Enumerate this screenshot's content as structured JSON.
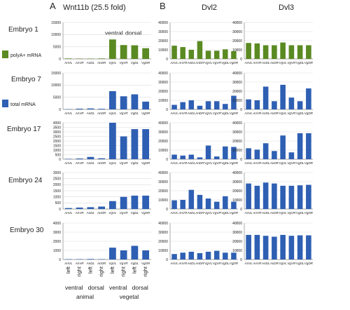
{
  "panels": {
    "a_letter": "A",
    "b_letter": "B",
    "col1_title": "Wnt11b  (25.5 fold)",
    "col2_title": "Dvl2",
    "col3_title": "Dvl3"
  },
  "embryos": [
    "Embryo  1",
    "Embryo 7",
    "Embryo 17",
    "Embryo 24",
    "Embryo 30"
  ],
  "legend": {
    "polya": {
      "label": "polyA+ mRNA",
      "color": "#5a8a22"
    },
    "total": {
      "label": "total mRNA",
      "color": "#2e5fb3"
    }
  },
  "top_annotation": {
    "ventral": "ventral",
    "dorsal": "dorsal"
  },
  "category_labels": [
    "AnVL",
    "AnVR",
    "AnDL",
    "AnDR",
    "VgVL",
    "VgVR",
    "VgDL",
    "VgDR"
  ],
  "bottom_axis": {
    "sides": [
      "left",
      "right",
      "left",
      "right",
      "left",
      "right",
      "left",
      "right"
    ],
    "groups": [
      "ventral",
      "dorsal",
      "ventral",
      "dorsal"
    ],
    "hemispheres": [
      "animal",
      "vegetal"
    ]
  },
  "chart_data": [
    {
      "type": "bar",
      "row": 0,
      "col": 0,
      "series_color": "polya",
      "ylim": [
        0,
        15000
      ],
      "yticks": [
        "0",
        "5000",
        "10000",
        "15000"
      ],
      "categories": [
        "AnVL",
        "AnVR",
        "AnDL",
        "AnDR",
        "VgVL",
        "VgVR",
        "VgDL",
        "VgDR"
      ],
      "values": [
        200,
        150,
        150,
        200,
        8000,
        5700,
        5600,
        4400
      ]
    },
    {
      "type": "bar",
      "row": 1,
      "col": 0,
      "series_color": "total",
      "ylim": [
        0,
        15000
      ],
      "yticks": [
        "0",
        "5000",
        "10000",
        "15000"
      ],
      "categories": [
        "AnVL",
        "AnVR",
        "AnDL",
        "AnDR",
        "VgVL",
        "VgVR",
        "VgDL",
        "VgDR"
      ],
      "values": [
        100,
        300,
        400,
        250,
        7500,
        5400,
        6200,
        3200
      ]
    },
    {
      "type": "bar",
      "row": 2,
      "col": 0,
      "series_color": "total",
      "ylim": [
        0,
        4000
      ],
      "yticks": [
        "0",
        "500",
        "1000",
        "1500",
        "2000",
        "2500",
        "3000",
        "3500",
        "4000"
      ],
      "categories": [
        "AnVL",
        "AnVR",
        "AnDL",
        "AnDR",
        "VgVL",
        "VgVR",
        "VgDL",
        "VgDR"
      ],
      "values": [
        40,
        80,
        250,
        100,
        4000,
        2500,
        3300,
        3300
      ]
    },
    {
      "type": "bar",
      "row": 3,
      "col": 0,
      "series_color": "total",
      "ylim": [
        0,
        3000
      ],
      "yticks": [
        "0",
        "500",
        "1000",
        "1500",
        "2000",
        "2500",
        "3000"
      ],
      "categories": [
        "AnVL",
        "AnVR",
        "AnDL",
        "AnDR",
        "VgVL",
        "VgVR",
        "VgDL",
        "VgDR"
      ],
      "values": [
        80,
        120,
        150,
        200,
        650,
        1000,
        1100,
        1100
      ]
    },
    {
      "type": "bar",
      "row": 4,
      "col": 0,
      "series_color": "total",
      "ylim": [
        0,
        4000
      ],
      "yticks": [
        "0",
        "1000",
        "2000",
        "3000",
        "4000"
      ],
      "categories": [
        "AnVL",
        "AnVR",
        "AnDL",
        "AnDR",
        "VgVL",
        "VgVR",
        "VgDL",
        "VgDR"
      ],
      "values": [
        40,
        40,
        60,
        40,
        1300,
        1000,
        1500,
        1000
      ]
    },
    {
      "type": "bar",
      "row": 0,
      "col": 1,
      "series_color": "polya",
      "ylim": [
        0,
        40000
      ],
      "yticks": [
        "0",
        "10000",
        "20000",
        "30000",
        "40000"
      ],
      "categories": [
        "AnVL",
        "AnVR",
        "AnDL",
        "AnDR",
        "VgVL",
        "VgVR",
        "VgDL",
        "VgDR"
      ],
      "values": [
        14500,
        13000,
        10000,
        19500,
        9000,
        9000,
        10500,
        8500
      ]
    },
    {
      "type": "bar",
      "row": 1,
      "col": 1,
      "series_color": "total",
      "ylim": [
        0,
        40000
      ],
      "yticks": [
        "0",
        "10000",
        "20000",
        "30000",
        "40000"
      ],
      "categories": [
        "AnVL",
        "AnVR",
        "AnDL",
        "AnDR",
        "VgVL",
        "VgVR",
        "VgDL",
        "VgDR"
      ],
      "values": [
        5000,
        8000,
        10000,
        4000,
        9000,
        9000,
        6000,
        15000
      ]
    },
    {
      "type": "bar",
      "row": 2,
      "col": 1,
      "series_color": "total",
      "ylim": [
        0,
        40000
      ],
      "yticks": [
        "0",
        "10000",
        "20000",
        "30000",
        "40000"
      ],
      "categories": [
        "AnVL",
        "AnVR",
        "AnDL",
        "AnDR",
        "VgVL",
        "VgVR",
        "VgDL",
        "VgDR"
      ],
      "values": [
        5000,
        4000,
        5000,
        2000,
        15000,
        3000,
        14000,
        13500
      ]
    },
    {
      "type": "bar",
      "row": 3,
      "col": 1,
      "series_color": "total",
      "ylim": [
        0,
        40000
      ],
      "yticks": [
        "0",
        "10000",
        "20000",
        "30000",
        "40000"
      ],
      "categories": [
        "AnVL",
        "AnVR",
        "AnDL",
        "AnDR",
        "VgVL",
        "VgVR",
        "VgDL",
        "VgDR"
      ],
      "values": [
        9500,
        10000,
        21000,
        15500,
        11500,
        8000,
        14000,
        8000
      ]
    },
    {
      "type": "bar",
      "row": 4,
      "col": 1,
      "series_color": "total",
      "ylim": [
        0,
        40000
      ],
      "yticks": [
        "0",
        "10000",
        "20000",
        "30000",
        "40000"
      ],
      "categories": [
        "AnVL",
        "AnVR",
        "AnDL",
        "AnDR",
        "VgVL",
        "VgVR",
        "VgDL",
        "VgDR"
      ],
      "values": [
        6000,
        7500,
        8500,
        7000,
        8500,
        9500,
        7500,
        7500
      ]
    },
    {
      "type": "bar",
      "row": 0,
      "col": 2,
      "series_color": "polya",
      "ylim": [
        0,
        40000
      ],
      "yticks": [
        "0",
        "10000",
        "20000",
        "30000",
        "40000"
      ],
      "categories": [
        "AnVL",
        "AnVR",
        "AnDL",
        "AnDR",
        "VgVL",
        "VgVR",
        "VgDL",
        "VgDR"
      ],
      "values": [
        17500,
        17000,
        15000,
        15000,
        18000,
        15000,
        15000,
        15000
      ]
    },
    {
      "type": "bar",
      "row": 1,
      "col": 2,
      "series_color": "total",
      "ylim": [
        0,
        40000
      ],
      "yticks": [
        "0",
        "10000",
        "20000",
        "30000",
        "40000"
      ],
      "categories": [
        "AnVL",
        "AnVR",
        "AnDL",
        "AnDR",
        "VgVL",
        "VgVR",
        "VgDL",
        "VgDR"
      ],
      "values": [
        11000,
        10000,
        25000,
        9000,
        27000,
        13000,
        9000,
        23000
      ]
    },
    {
      "type": "bar",
      "row": 2,
      "col": 2,
      "series_color": "total",
      "ylim": [
        0,
        40000
      ],
      "yticks": [
        "0",
        "10000",
        "20000",
        "30000",
        "40000"
      ],
      "categories": [
        "AnVL",
        "AnVR",
        "AnDL",
        "AnDR",
        "VgVL",
        "VgVR",
        "VgDL",
        "VgDR"
      ],
      "values": [
        12000,
        10500,
        17500,
        9000,
        26000,
        7500,
        28500,
        28500
      ]
    },
    {
      "type": "bar",
      "row": 3,
      "col": 2,
      "series_color": "total",
      "ylim": [
        0,
        40000
      ],
      "yticks": [
        "0",
        "10000",
        "20000",
        "30000",
        "40000"
      ],
      "categories": [
        "AnVL",
        "AnVR",
        "AnDL",
        "AnDR",
        "VgVL",
        "VgVR",
        "VgDL",
        "VgDR"
      ],
      "values": [
        28000,
        25500,
        29000,
        28000,
        25500,
        25500,
        26000,
        26500
      ]
    },
    {
      "type": "bar",
      "row": 4,
      "col": 2,
      "series_color": "total",
      "ylim": [
        0,
        40000
      ],
      "yticks": [
        "0",
        "10000",
        "20000",
        "30000",
        "40000"
      ],
      "categories": [
        "AnVL",
        "AnVR",
        "AnDL",
        "AnDR",
        "VgVL",
        "VgVR",
        "VgDL",
        "VgDR"
      ],
      "values": [
        27000,
        27000,
        26000,
        25000,
        27000,
        26000,
        26500,
        26500
      ]
    }
  ]
}
